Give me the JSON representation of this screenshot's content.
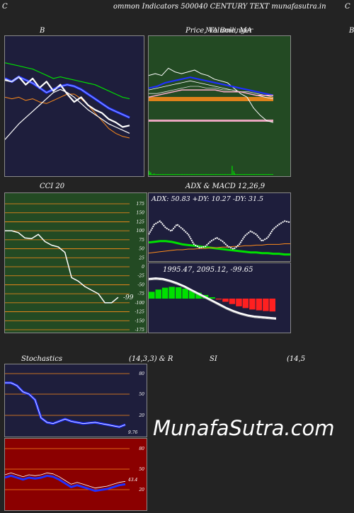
{
  "header": {
    "left_letter": "C",
    "title": "ommon  Indicators 500040  CENTURY TEXT munafasutra.in",
    "right_letter": "C"
  },
  "labels": {
    "bb": "B",
    "price": "Price,  Volume, MA",
    "price_overlay": "MA Bollinger",
    "right_edge": "B",
    "cci": "CCI 20",
    "adx_macd": "ADX  & MACD 12,26,9",
    "stochastics": "Stochastics",
    "stoch_params": "(14,3,3) & R",
    "si": "SI",
    "si_params": "(14,5"
  },
  "watermark": "MunafaSutra.com",
  "colors": {
    "bg": "#232323",
    "navy": "#1e1e3c",
    "green_dark": "#234a23",
    "maroon": "#8b0000",
    "orange": "#ff8c1a",
    "blue": "#1f2fff",
    "green": "#00e000",
    "pink": "#ffb0d0"
  },
  "chart_data": [
    {
      "type": "line",
      "panel": "bollinger",
      "series": [
        {
          "values": [
            80,
            79,
            80,
            78,
            79,
            77,
            76,
            78,
            80,
            82,
            82,
            79,
            75,
            70,
            65,
            60,
            57,
            55,
            54
          ]
        },
        {
          "values": [
            92,
            90,
            93,
            91,
            89,
            86,
            83,
            85,
            87,
            88,
            87,
            85,
            82,
            79,
            76,
            73,
            71,
            69,
            67
          ]
        },
        {
          "values": [
            102,
            101,
            100,
            99,
            98,
            96,
            94,
            92,
            93,
            92,
            91,
            90,
            89,
            88,
            86,
            84,
            82,
            80,
            79
          ]
        },
        {
          "values": [
            53,
            58,
            63,
            67,
            71,
            75,
            79,
            83,
            85,
            83,
            80,
            76,
            72,
            69,
            66,
            63,
            61,
            59,
            57
          ]
        },
        {
          "values": [
            91,
            90,
            93,
            88,
            92,
            86,
            90,
            84,
            88,
            82,
            77,
            80,
            75,
            72,
            70,
            66,
            64,
            61,
            62
          ]
        }
      ]
    },
    {
      "type": "line",
      "panel": "price_volume_ma",
      "series": [
        {
          "values": [
            88,
            89,
            88,
            92,
            90,
            89,
            90,
            91,
            89,
            88,
            86,
            85,
            84,
            81,
            78,
            76,
            70,
            66,
            63,
            62
          ]
        },
        {
          "values": [
            81,
            82,
            84,
            85,
            86,
            87,
            86,
            85,
            84,
            83,
            82,
            81,
            80,
            79,
            78,
            77
          ]
        },
        {
          "values": [
            80,
            81,
            82,
            83,
            84,
            85,
            84,
            83,
            82,
            81,
            80,
            79,
            78,
            77,
            76,
            75
          ]
        },
        {
          "values": [
            78,
            78,
            79,
            80,
            81,
            82,
            82,
            81,
            81,
            80,
            80,
            79,
            79,
            78,
            77,
            76
          ]
        },
        {
          "values": [
            76,
            77,
            78,
            79,
            80,
            80,
            80,
            80,
            80,
            79,
            79,
            79,
            78,
            77,
            77,
            77
          ]
        }
      ],
      "volume": [
        6,
        2,
        4,
        1,
        1,
        1,
        2,
        1,
        1,
        1,
        1,
        1,
        1,
        1,
        1,
        1,
        1,
        1,
        1,
        1,
        1,
        1,
        1,
        1,
        1,
        1,
        1,
        1,
        1,
        1,
        1,
        1,
        1,
        1,
        1,
        1,
        1,
        1,
        1,
        1,
        1,
        1,
        1,
        1,
        1,
        1,
        1,
        1,
        1,
        1,
        1,
        1,
        1,
        1,
        1,
        1,
        1,
        1,
        1,
        1,
        1,
        1,
        1,
        1,
        1,
        1,
        1,
        1,
        1,
        1,
        1,
        1,
        1,
        1,
        1,
        1,
        1,
        1,
        1,
        1,
        1,
        1,
        1,
        1,
        1,
        1,
        1,
        1,
        1,
        1,
        1,
        1,
        1,
        1,
        1,
        1,
        1,
        1,
        1,
        1,
        14,
        1,
        6,
        2,
        1,
        1,
        1,
        1,
        1,
        1,
        1,
        1,
        1,
        1,
        1,
        1,
        1,
        1,
        1,
        1,
        1,
        1,
        1,
        1,
        1,
        1,
        1,
        1,
        1,
        1,
        1,
        1,
        1,
        1,
        1,
        1,
        1,
        1,
        1,
        1,
        1,
        1,
        1,
        1,
        1,
        1,
        1,
        1,
        1,
        1
      ]
    },
    {
      "type": "line",
      "panel": "cci",
      "ylim": [
        -175,
        175
      ],
      "yticks": [
        "175",
        "150",
        "125",
        "100",
        "75",
        "50",
        "25",
        "0",
        "-25",
        "-50",
        "-75",
        "-100",
        "-125",
        "-150",
        "-175"
      ],
      "values": [
        100,
        100,
        95,
        80,
        78,
        90,
        70,
        60,
        55,
        40,
        -30,
        -40,
        -55,
        -65,
        -75,
        -100,
        -100,
        -85
      ],
      "last_label": "-99"
    },
    {
      "type": "line",
      "panel": "adx",
      "title": "ADX: 50.83  +DY: 10.27 -DY: 31.5",
      "series": [
        {
          "values": [
            28,
            29,
            30,
            30,
            29,
            27,
            25,
            24,
            23,
            22,
            21,
            20,
            19,
            18,
            17,
            16,
            15,
            14,
            13,
            13,
            12,
            12,
            11,
            11,
            10,
            10
          ]
        },
        {
          "values": [
            12,
            13,
            14,
            15,
            16,
            17,
            17,
            18,
            18,
            19,
            19,
            20,
            20,
            21,
            21,
            22,
            22,
            23,
            23,
            24,
            24,
            25,
            25,
            25,
            26,
            26
          ]
        },
        {
          "values": [
            40,
            55,
            60,
            50,
            45,
            55,
            48,
            40,
            25,
            20,
            22,
            30,
            35,
            30,
            22,
            18,
            25,
            38,
            45,
            40,
            30,
            35,
            48,
            55,
            60,
            58
          ]
        }
      ]
    },
    {
      "type": "bar",
      "panel": "macd",
      "title": "1995.47,  2095.12,  -99.65",
      "values": [
        30,
        40,
        48,
        52,
        50,
        44,
        36,
        26,
        16,
        6,
        -4,
        -14,
        -24,
        -34,
        -42,
        -48,
        -52,
        -55,
        -57
      ],
      "line_values": [
        60,
        62,
        60,
        54,
        46,
        36,
        24,
        12,
        0,
        -12,
        -24,
        -36,
        -46,
        -54,
        -60,
        -64,
        -66,
        -68,
        -70
      ]
    },
    {
      "type": "line",
      "panel": "stochastics",
      "yticks": [
        "80",
        "50",
        "20"
      ],
      "values": [
        90,
        90,
        85,
        74,
        70,
        60,
        28,
        20,
        18,
        22,
        26,
        22,
        20,
        18,
        19,
        20,
        18,
        16,
        14,
        12,
        16
      ],
      "last_label": "9.76"
    },
    {
      "type": "line",
      "panel": "rsi",
      "yticks": [
        "80",
        "50",
        "20"
      ],
      "values": [
        50,
        52,
        50,
        48,
        50,
        49,
        50,
        52,
        51,
        48,
        44,
        40,
        42,
        40,
        38,
        36,
        37,
        38,
        40,
        42,
        43
      ],
      "last_label": "43.4"
    }
  ]
}
